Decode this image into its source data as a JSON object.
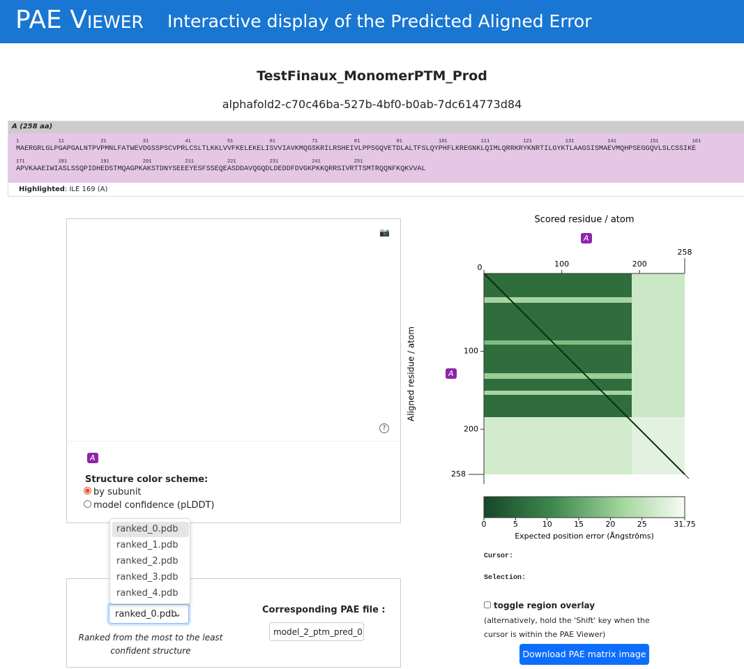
{
  "header": {
    "title": "PAE Viewer",
    "subtitle": "Interactive display of the Predicted Aligned Error"
  },
  "project": {
    "name": "TestFinaux_MonomerPTM_Prod",
    "id": "alphafold2-c70c46ba-527b-4bf0-b0ab-7dc614773d84"
  },
  "sequence": {
    "chain": "A (258 aa)",
    "lines": [
      {
        "numbers": [
          1,
          11,
          21,
          31,
          41,
          51,
          61,
          71,
          81,
          91,
          101,
          111,
          121,
          131,
          141,
          151,
          161
        ],
        "residues": "MAERGRLGLPGAPGALNTPVPMNLFATWEVDGSSPSCVPRLCSLTLKKLVVFKELEKELISVVIAVKMQGSKRILRSHEIVLPPSGQVETDLALTFSLQYPHFLKREGNKLQIMLQRRKRYKNRTILGYKTLAAGSISMAEVMQHPSEGGQVLSLCSSIKE"
      },
      {
        "numbers": [
          171,
          181,
          191,
          201,
          211,
          221,
          231,
          241,
          251
        ],
        "residues": "APVKAAEIWIASLSSQPIDHEDSTMQAGPKAKSTDNYSEEEYESFSSEQEASDDAVQGQDLDEDDFDVGKPKKQRRSIVRTTSMTRQQNFKQKVVAL"
      }
    ],
    "highlighted_label": "Highlighted",
    "highlighted": ": ILE 169 (A)"
  },
  "structure": {
    "chain": "A",
    "color_scheme_label": "Structure color scheme:",
    "options": [
      "by subunit",
      "model confidence (pLDDT)"
    ],
    "files": [
      "ranked_0.pdb",
      "ranked_1.pdb",
      "ranked_2.pdb",
      "ranked_3.pdb",
      "ranked_4.pdb"
    ],
    "selected_file": "ranked_0.pdb",
    "ranking_note": "Ranked from the most to the least confident structure",
    "pae_file_label": "Corresponding PAE file :",
    "pae_file": "model_2_ptm_pred_0"
  },
  "pae": {
    "x_label": "Scored residue / atom",
    "y_label": "Aligned residue / atom",
    "chain": "A",
    "xlim": [
      0,
      258
    ],
    "ylim": [
      0,
      258
    ],
    "xticks": [
      0,
      100,
      200,
      258
    ],
    "yticks": [
      100,
      200,
      258
    ],
    "colorbar": {
      "lim": [
        0,
        31.75
      ],
      "ticks": [
        0,
        5,
        10,
        15,
        20,
        25,
        31.75
      ],
      "label": "Expected position error (Ångströms)"
    },
    "cursor_label": "Cursor:",
    "selection_label": "Selection:",
    "overlay_label": "toggle region overlay",
    "overlay_hint": "(alternatively, hold the 'Shift' key when the cursor is within the PAE Viewer)",
    "download": "Download PAE matrix image"
  }
}
